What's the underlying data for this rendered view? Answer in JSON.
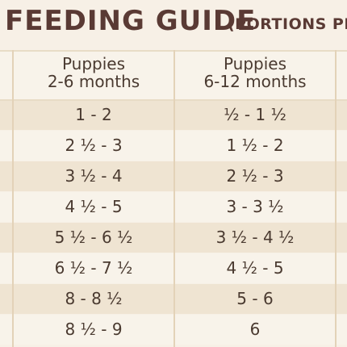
{
  "title": {
    "main": "FEEDING GUIDE",
    "sub": "(PORTIONS PE"
  },
  "columns": [
    {
      "label_line1": "Puppies",
      "label_line2": "2-6 months"
    },
    {
      "label_line1": "Puppies",
      "label_line2": "6-12 months"
    }
  ],
  "rows": [
    {
      "c1": "1 - 2",
      "c2": "½ - 1 ½"
    },
    {
      "c1": "2 ½ - 3",
      "c2": "1 ½ - 2"
    },
    {
      "c1": "3 ½ - 4",
      "c2": "2 ½ - 3"
    },
    {
      "c1": "4 ½ - 5",
      "c2": "3 - 3 ½"
    },
    {
      "c1": "5 ½ - 6 ½",
      "c2": "3 ½ - 4 ½"
    },
    {
      "c1": "6 ½ - 7 ½",
      "c2": "4 ½ - 5"
    },
    {
      "c1": "8 - 8 ½",
      "c2": "5 - 6"
    },
    {
      "c1": "8 ½ - 9",
      "c2": "6"
    }
  ],
  "colors": {
    "background": "#f7f0e6",
    "shaded_row": "#efe4d2",
    "text": "#4a3a30",
    "title": "#5a3a34",
    "grid": "#e3d2b8"
  }
}
